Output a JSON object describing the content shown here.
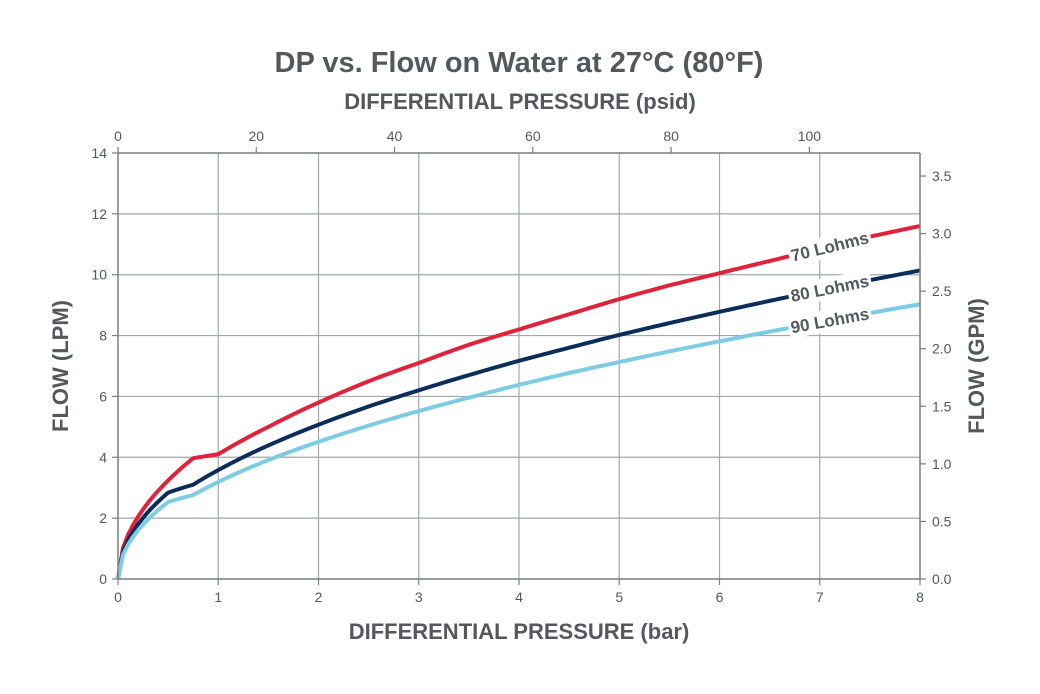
{
  "chart_data": {
    "type": "line",
    "title": "DP vs. Flow on Water at 27°C (80°F)",
    "xlabel": "DIFFERENTIAL PRESSURE (bar)",
    "x2label": "DIFFERENTIAL PRESSURE (psid)",
    "ylabel": "FLOW (LPM)",
    "y2label": "FLOW (GPM)",
    "xlim": [
      0,
      8
    ],
    "ylim": [
      0,
      14
    ],
    "x2lim": [
      0,
      116
    ],
    "y2lim": [
      0,
      3.7
    ],
    "xticks": [
      "0",
      "1",
      "2",
      "3",
      "4",
      "5",
      "6",
      "7",
      "8"
    ],
    "yticks": [
      "0",
      "2",
      "4",
      "6",
      "8",
      "10",
      "12",
      "14"
    ],
    "x2ticks": [
      "0",
      "20",
      "40",
      "60",
      "80",
      "100"
    ],
    "y2ticks": [
      "0.0",
      "0.5",
      "1.0",
      "1.5",
      "2.0",
      "2.5",
      "3.0",
      "3.5"
    ],
    "grid": true,
    "series": [
      {
        "name": "70 Lohms",
        "color": "#e0233a",
        "x": [
          0,
          0.1,
          0.25,
          0.5,
          0.75,
          1,
          1.5,
          2,
          2.5,
          3,
          3.5,
          4,
          4.5,
          5,
          5.5,
          6,
          6.5,
          7,
          7.5,
          8
        ],
        "y": [
          0,
          1.45,
          2.29,
          3.24,
          3.97,
          4.1,
          5.0,
          5.8,
          6.5,
          7.1,
          7.7,
          8.2,
          8.7,
          9.2,
          9.65,
          10.05,
          10.45,
          10.85,
          11.25,
          11.6
        ]
      },
      {
        "name": "80 Lohms",
        "color": "#0b2d5c",
        "x": [
          0,
          0.1,
          0.25,
          0.5,
          0.75,
          1,
          1.5,
          2,
          2.5,
          3,
          3.5,
          4,
          4.5,
          5,
          5.5,
          6,
          6.5,
          7,
          7.5,
          8
        ],
        "y": [
          0,
          1.27,
          2.01,
          2.84,
          3.1,
          3.58,
          4.39,
          5.07,
          5.67,
          6.2,
          6.7,
          7.17,
          7.6,
          8.02,
          8.41,
          8.78,
          9.14,
          9.49,
          9.82,
          10.14
        ]
      },
      {
        "name": "90 Lohms",
        "color": "#7ccde3",
        "x": [
          0,
          0.1,
          0.25,
          0.5,
          0.75,
          1,
          1.5,
          2,
          2.5,
          3,
          3.5,
          4,
          4.5,
          5,
          5.5,
          6,
          6.5,
          7,
          7.5,
          8
        ],
        "y": [
          0,
          1.13,
          1.79,
          2.53,
          2.76,
          3.19,
          3.91,
          4.51,
          5.04,
          5.52,
          5.96,
          6.38,
          6.77,
          7.13,
          7.48,
          7.81,
          8.13,
          8.44,
          8.74,
          9.03
        ]
      }
    ]
  }
}
